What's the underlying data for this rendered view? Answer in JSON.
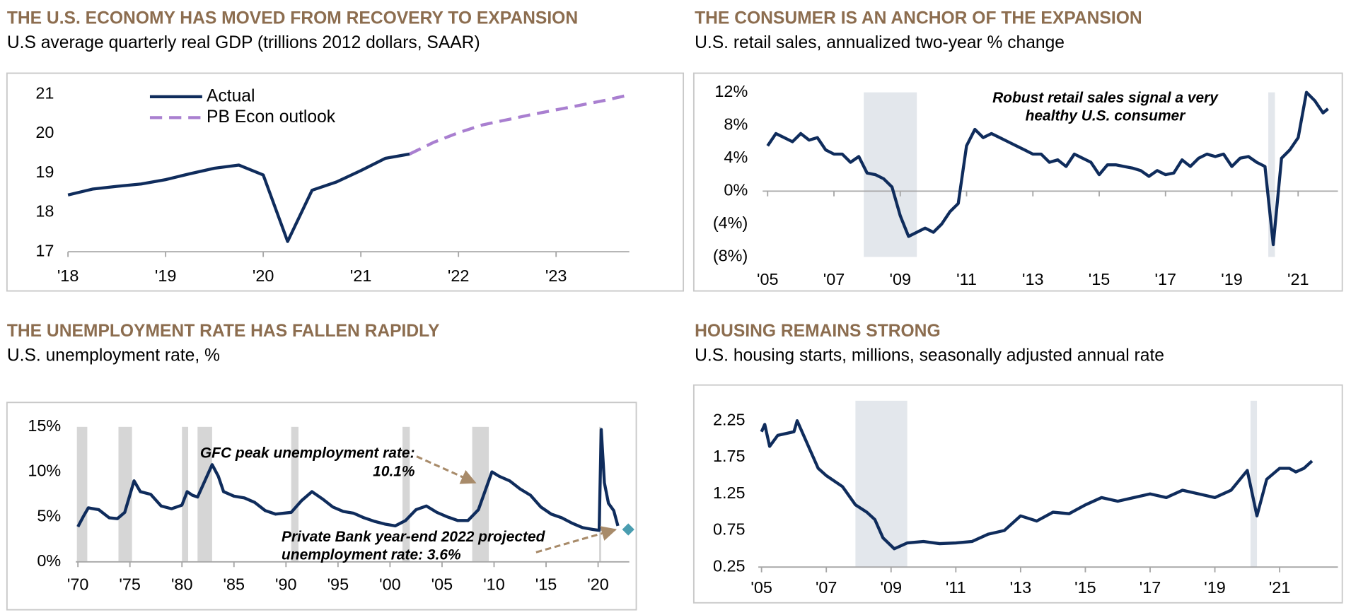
{
  "chart_data": [
    {
      "type": "line",
      "title": "THE U.S. ECONOMY HAS MOVED FROM RECOVERY TO EXPANSION",
      "subtitle": "U.S average quarterly real GDP (trillions 2012 dollars, SAAR)",
      "xlim": [
        2018,
        2023.75
      ],
      "xticks": [
        {
          "value": 2018,
          "label": "'18"
        },
        {
          "value": 2019,
          "label": "'19"
        },
        {
          "value": 2020,
          "label": "'20"
        },
        {
          "value": 2021,
          "label": "'21"
        },
        {
          "value": 2022,
          "label": "'22"
        },
        {
          "value": 2023,
          "label": "'23"
        }
      ],
      "ylim": [
        17,
        21
      ],
      "yticks": [
        17,
        18,
        19,
        20,
        21
      ],
      "legend": "upper left",
      "series": [
        {
          "name": "Actual",
          "color": "#0f2c5c",
          "dash": false,
          "x": [
            2018,
            2018.25,
            2018.5,
            2018.75,
            2019,
            2019.25,
            2019.5,
            2019.75,
            2020,
            2020.25,
            2020.5,
            2020.75,
            2021,
            2021.25,
            2021.5
          ],
          "values": [
            18.44,
            18.59,
            18.66,
            18.72,
            18.83,
            18.98,
            19.12,
            19.2,
            18.95,
            17.26,
            18.56,
            18.77,
            19.06,
            19.37,
            19.48
          ]
        },
        {
          "name": "PB Econ outlook",
          "color": "#a97fd0",
          "dash": true,
          "x": [
            2021.5,
            2021.75,
            2022,
            2022.25,
            2022.5,
            2022.75,
            2023,
            2023.25,
            2023.5,
            2023.75
          ],
          "values": [
            19.48,
            19.78,
            20.02,
            20.22,
            20.35,
            20.48,
            20.6,
            20.72,
            20.84,
            20.98
          ]
        }
      ]
    },
    {
      "type": "line",
      "title": "THE CONSUMER IS AN ANCHOR OF THE EXPANSION",
      "subtitle": "U.S. retail sales, annualized two-year % change",
      "annotation": [
        "Robust retail sales signal a very",
        "healthy U.S. consumer"
      ],
      "xlim": [
        2004.85,
        2022.2
      ],
      "xticks": [
        {
          "value": 2005,
          "label": "'05"
        },
        {
          "value": 2007,
          "label": "'07"
        },
        {
          "value": 2009,
          "label": "'09"
        },
        {
          "value": 2011,
          "label": "'11"
        },
        {
          "value": 2013,
          "label": "'13"
        },
        {
          "value": 2015,
          "label": "'15"
        },
        {
          "value": 2017,
          "label": "'17"
        },
        {
          "value": 2019,
          "label": "'19"
        },
        {
          "value": 2021,
          "label": "'21"
        }
      ],
      "ylim": [
        -8,
        12
      ],
      "yticks": [
        {
          "value": -8,
          "label": "(8%)"
        },
        {
          "value": -4,
          "label": "(4%)"
        },
        {
          "value": 0,
          "label": "0%"
        },
        {
          "value": 4,
          "label": "4%"
        },
        {
          "value": 8,
          "label": "8%"
        },
        {
          "value": 12,
          "label": "12%"
        }
      ],
      "recessions": [
        [
          2007.9,
          2009.5
        ],
        [
          2020.1,
          2020.3
        ]
      ],
      "recession_color": "#e3e7ec",
      "series": [
        {
          "name": "Retail sales",
          "color": "#0f2c5c",
          "dash": false,
          "x": [
            2005,
            2005.25,
            2005.5,
            2005.75,
            2006,
            2006.25,
            2006.5,
            2006.75,
            2007,
            2007.25,
            2007.5,
            2007.75,
            2008,
            2008.25,
            2008.5,
            2008.75,
            2009,
            2009.25,
            2009.5,
            2009.75,
            2010,
            2010.25,
            2010.5,
            2010.75,
            2011,
            2011.25,
            2011.5,
            2011.75,
            2012,
            2012.25,
            2012.5,
            2012.75,
            2013,
            2013.25,
            2013.5,
            2013.75,
            2014,
            2014.25,
            2014.5,
            2014.75,
            2015,
            2015.25,
            2015.5,
            2015.75,
            2016,
            2016.25,
            2016.5,
            2016.75,
            2017,
            2017.25,
            2017.5,
            2017.75,
            2018,
            2018.25,
            2018.5,
            2018.75,
            2019,
            2019.25,
            2019.5,
            2019.75,
            2020,
            2020.25,
            2020.5,
            2020.75,
            2021,
            2021.25,
            2021.5,
            2021.75,
            2021.9
          ],
          "values": [
            5.5,
            7,
            6.5,
            6,
            7,
            6.2,
            6.5,
            5,
            4.5,
            4.5,
            3.5,
            4.2,
            2.2,
            2,
            1.5,
            0.5,
            -3,
            -5.5,
            -5,
            -4.5,
            -5,
            -4,
            -2.5,
            -1.5,
            5.5,
            7.5,
            6.5,
            7,
            6.5,
            6,
            5.5,
            5,
            4.5,
            4.5,
            3.5,
            3.8,
            3,
            4.5,
            4,
            3.5,
            2,
            3.2,
            3.2,
            3,
            2.8,
            2.5,
            1.8,
            2.5,
            2,
            2.2,
            3.8,
            3,
            4,
            4.5,
            4.2,
            4.5,
            3,
            4,
            4.2,
            3.5,
            3,
            -6.5,
            4,
            5,
            6.5,
            12,
            11,
            9.5,
            10
          ]
        }
      ]
    },
    {
      "type": "line",
      "title": "THE UNEMPLOYMENT RATE HAS FALLEN RAPIDLY",
      "subtitle": "U.S. unemployment rate, %",
      "annotations": [
        [
          "GFC peak unemployment rate:",
          "10.1%"
        ],
        [
          "Private Bank year-end 2022 projected",
          "unemployment rate: 3.6%"
        ]
      ],
      "xlim": [
        1969.8,
        2023
      ],
      "xticks": [
        {
          "value": 1970,
          "label": "'70"
        },
        {
          "value": 1975,
          "label": "'75"
        },
        {
          "value": 1980,
          "label": "'80"
        },
        {
          "value": 1985,
          "label": "'85"
        },
        {
          "value": 1990,
          "label": "'90"
        },
        {
          "value": 1995,
          "label": "'95"
        },
        {
          "value": 2000,
          "label": "'00"
        },
        {
          "value": 2005,
          "label": "'05"
        },
        {
          "value": 2010,
          "label": "'10"
        },
        {
          "value": 2015,
          "label": "'15"
        },
        {
          "value": 2020,
          "label": "'20"
        }
      ],
      "ylim": [
        0,
        15
      ],
      "yticks": [
        {
          "value": 0,
          "label": "0%"
        },
        {
          "value": 5,
          "label": "5%"
        },
        {
          "value": 10,
          "label": "10%"
        },
        {
          "value": 15,
          "label": "15%"
        }
      ],
      "recessions": [
        [
          1969.9,
          1970.9
        ],
        [
          1973.9,
          1975.2
        ],
        [
          1980,
          1980.6
        ],
        [
          1981.5,
          1982.9
        ],
        [
          1990.5,
          1991.2
        ],
        [
          2001.2,
          2001.9
        ],
        [
          2007.9,
          2009.5
        ],
        [
          2020.1,
          2020.3
        ]
      ],
      "recession_color": "#d6d6d6",
      "projection": {
        "x": 2022.9,
        "value": 3.6,
        "color": "#4a9db0"
      },
      "series": [
        {
          "name": "Unemployment rate",
          "color": "#0f2c5c",
          "dash": false,
          "x": [
            1970,
            1970.5,
            1971,
            1972,
            1973,
            1973.8,
            1974.5,
            1975.4,
            1976,
            1977,
            1978,
            1979,
            1980,
            1980.5,
            1981,
            1981.5,
            1982.9,
            1983.5,
            1984,
            1985,
            1986,
            1987,
            1988,
            1989,
            1990.5,
            1991.5,
            1992.5,
            1993.5,
            1994.5,
            1995.5,
            1996.5,
            1997.5,
            1998.5,
            1999.5,
            2000.5,
            2001.5,
            2002.5,
            2003.5,
            2004.5,
            2005.5,
            2006.5,
            2007.5,
            2008.5,
            2009.8,
            2010.5,
            2011.5,
            2012.5,
            2013.5,
            2014.5,
            2015.5,
            2016.5,
            2017.5,
            2018.5,
            2019.5,
            2020.1,
            2020.3,
            2020.6,
            2021,
            2021.5,
            2021.9
          ],
          "values": [
            3.9,
            5,
            6,
            5.8,
            4.9,
            4.8,
            5.5,
            9,
            7.8,
            7.5,
            6.2,
            5.9,
            6.3,
            7.8,
            7.4,
            7.2,
            10.8,
            9.5,
            7.8,
            7.3,
            7.1,
            6.6,
            5.7,
            5.3,
            5.5,
            6.8,
            7.8,
            7,
            6.1,
            5.6,
            5.4,
            4.9,
            4.5,
            4.2,
            4,
            4.6,
            5.8,
            6.2,
            5.5,
            5,
            4.6,
            4.6,
            5.8,
            10,
            9.5,
            9,
            8.1,
            7.4,
            6.1,
            5.3,
            4.9,
            4.3,
            3.8,
            3.6,
            3.5,
            14.7,
            8.8,
            6.5,
            5.7,
            4
          ]
        }
      ]
    },
    {
      "type": "line",
      "title": "HOUSING REMAINS STRONG",
      "subtitle": "U.S. housing starts, millions, seasonally adjusted annual rate",
      "xlim": [
        2004.9,
        2022.8
      ],
      "xticks": [
        {
          "value": 2005,
          "label": "'05"
        },
        {
          "value": 2007,
          "label": "'07"
        },
        {
          "value": 2009,
          "label": "'09"
        },
        {
          "value": 2011,
          "label": "'11"
        },
        {
          "value": 2013,
          "label": "'13"
        },
        {
          "value": 2015,
          "label": "'15"
        },
        {
          "value": 2017,
          "label": "'17"
        },
        {
          "value": 2019,
          "label": "'19"
        },
        {
          "value": 2021,
          "label": "'21"
        }
      ],
      "ylim": [
        0.25,
        2.25
      ],
      "yticks": [
        0.25,
        0.75,
        1.25,
        1.75,
        2.25
      ],
      "recessions": [
        [
          2007.9,
          2009.5
        ],
        [
          2020.1,
          2020.3
        ]
      ],
      "recession_color": "#e3e7ec",
      "series": [
        {
          "name": "Housing starts",
          "color": "#0f2c5c",
          "dash": false,
          "x": [
            2005,
            2005.1,
            2005.25,
            2005.5,
            2006,
            2006.1,
            2006.5,
            2006.75,
            2007,
            2007.5,
            2007.9,
            2008.25,
            2008.5,
            2008.75,
            2009.1,
            2009.5,
            2010,
            2010.5,
            2011,
            2011.5,
            2012,
            2012.5,
            2013,
            2013.5,
            2014,
            2014.5,
            2015,
            2015.5,
            2016,
            2016.5,
            2017,
            2017.5,
            2018,
            2018.5,
            2019,
            2019.5,
            2020,
            2020.3,
            2020.6,
            2021,
            2021.3,
            2021.5,
            2021.75,
            2022
          ],
          "values": [
            2.1,
            2.2,
            1.9,
            2.05,
            2.1,
            2.25,
            1.85,
            1.6,
            1.5,
            1.35,
            1.1,
            1,
            0.9,
            0.65,
            0.5,
            0.58,
            0.6,
            0.57,
            0.58,
            0.6,
            0.7,
            0.75,
            0.95,
            0.88,
            1,
            0.98,
            1.1,
            1.2,
            1.15,
            1.2,
            1.25,
            1.2,
            1.3,
            1.25,
            1.2,
            1.3,
            1.57,
            0.95,
            1.45,
            1.6,
            1.6,
            1.55,
            1.6,
            1.7
          ]
        }
      ]
    }
  ]
}
